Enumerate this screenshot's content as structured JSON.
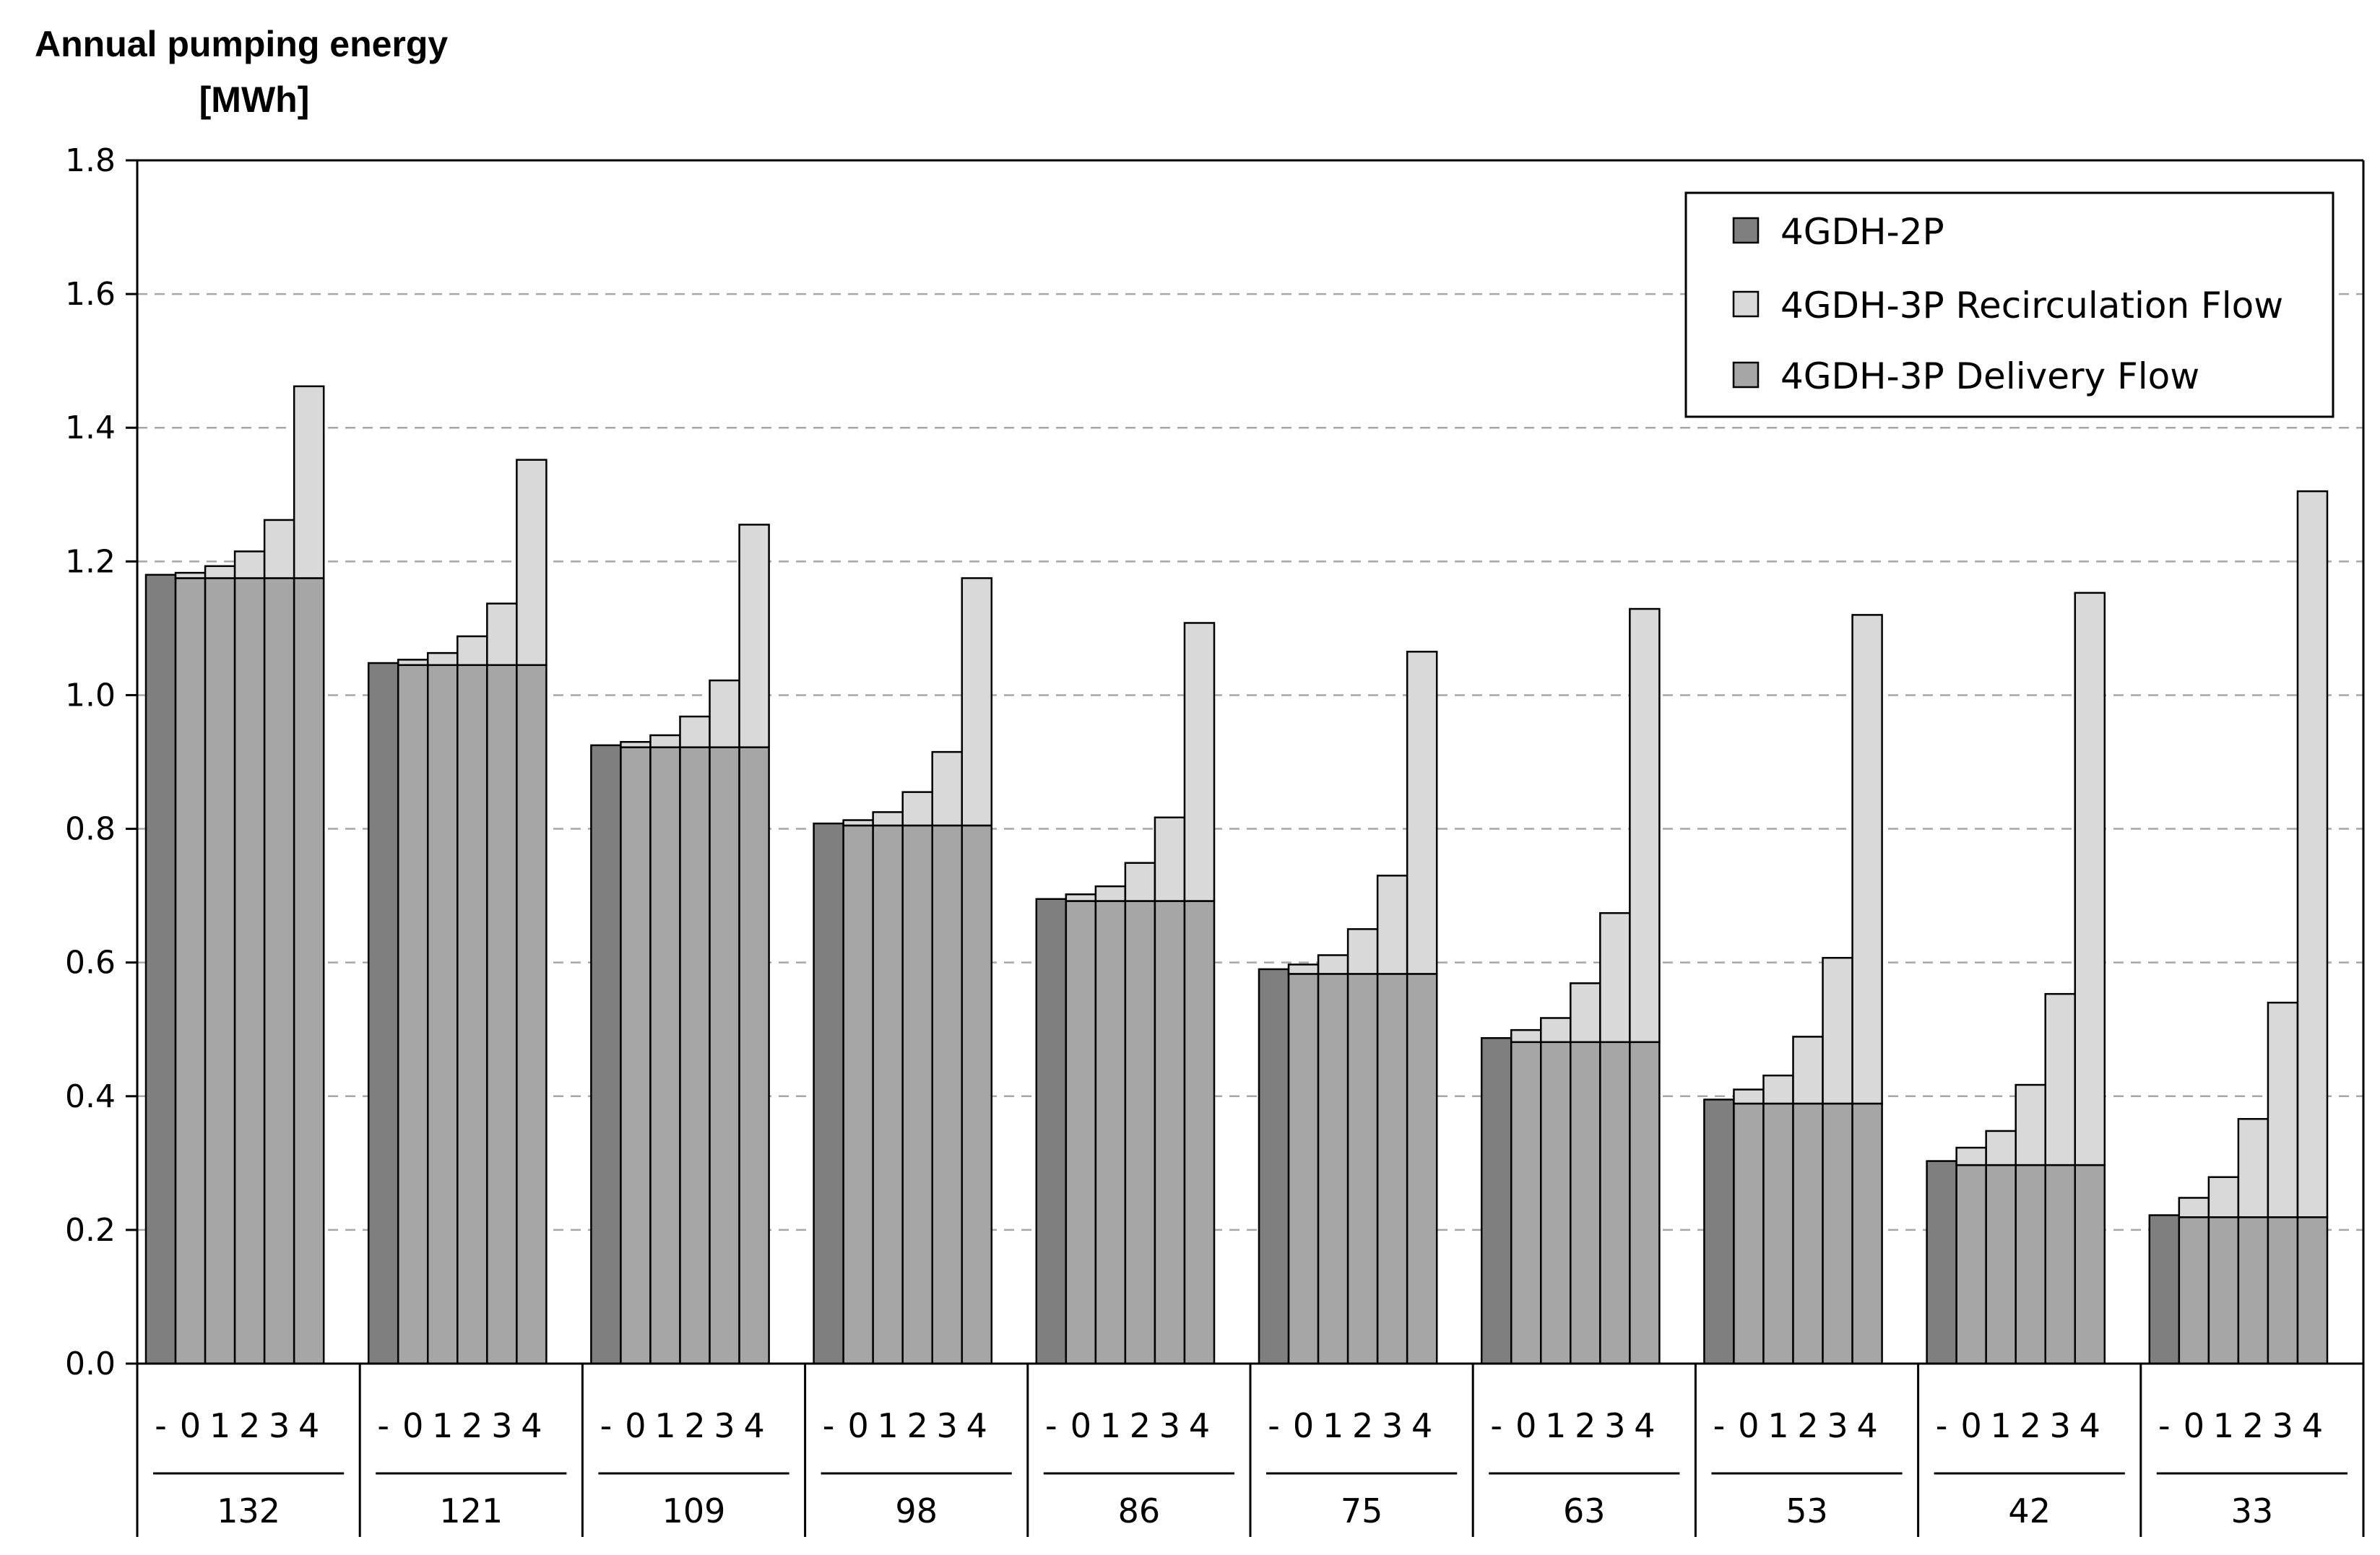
{
  "chart_data": {
    "type": "bar",
    "stacked": true,
    "ylabel": [
      "Annual pumping energy",
      "[MWh]"
    ],
    "ylim": [
      0,
      1.8
    ],
    "yticks": [
      "0.0",
      "0.2",
      "0.4",
      "0.6",
      "0.8",
      "1.0",
      "1.2",
      "1.4",
      "1.6",
      "1.8"
    ],
    "grid": "horizontal dashed",
    "legend_position": "top-right",
    "legend": [
      "4GDH-2P",
      "4GDH-3P Recirculation Flow",
      "4GDH-3P Delivery Flow"
    ],
    "colors": {
      "two_pipe": "#7f7f7f",
      "recirculation": "#d9d9d9",
      "delivery": "#a6a6a6"
    },
    "subcategories": [
      "-",
      "0",
      "1",
      "2",
      "3",
      "4"
    ],
    "groups": [
      {
        "label": "132",
        "two_pipe": 1.18,
        "delivery": 1.175,
        "recirculation": [
          0.008,
          0.018,
          0.04,
          0.087,
          0.287
        ]
      },
      {
        "label": "121",
        "two_pipe": 1.048,
        "delivery": 1.045,
        "recirculation": [
          0.008,
          0.018,
          0.043,
          0.092,
          0.307
        ]
      },
      {
        "label": "109",
        "two_pipe": 0.925,
        "delivery": 0.922,
        "recirculation": [
          0.008,
          0.018,
          0.046,
          0.1,
          0.333
        ]
      },
      {
        "label": "98",
        "two_pipe": 0.808,
        "delivery": 0.805,
        "recirculation": [
          0.008,
          0.02,
          0.05,
          0.11,
          0.37
        ]
      },
      {
        "label": "86",
        "two_pipe": 0.695,
        "delivery": 0.692,
        "recirculation": [
          0.01,
          0.022,
          0.057,
          0.125,
          0.416
        ]
      },
      {
        "label": "75",
        "two_pipe": 0.59,
        "delivery": 0.583,
        "recirculation": [
          0.014,
          0.028,
          0.067,
          0.147,
          0.482
        ]
      },
      {
        "label": "63",
        "two_pipe": 0.487,
        "delivery": 0.481,
        "recirculation": [
          0.018,
          0.036,
          0.088,
          0.193,
          0.648
        ]
      },
      {
        "label": "53",
        "two_pipe": 0.395,
        "delivery": 0.389,
        "recirculation": [
          0.021,
          0.042,
          0.1,
          0.218,
          0.731
        ]
      },
      {
        "label": "42",
        "two_pipe": 0.303,
        "delivery": 0.297,
        "recirculation": [
          0.026,
          0.051,
          0.12,
          0.256,
          0.856
        ]
      },
      {
        "label": "33",
        "two_pipe": 0.222,
        "delivery": 0.219,
        "recirculation": [
          0.029,
          0.06,
          0.147,
          0.321,
          1.086
        ]
      }
    ]
  }
}
